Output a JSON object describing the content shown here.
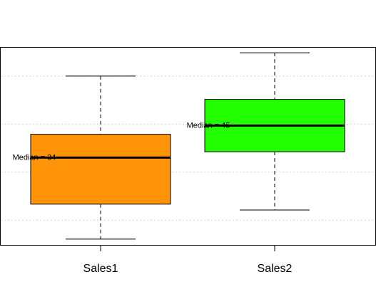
{
  "chart_data": {
    "type": "box",
    "title": "",
    "xlabel": "",
    "ylabel": "",
    "categories": [
      "Sales1",
      "Sales2"
    ],
    "ylim": [
      4,
      72
    ],
    "grid": true,
    "grid_values": [
      12.5,
      29,
      45.5,
      62
    ],
    "boxes": [
      {
        "name": "Sales1",
        "min": 6,
        "q1": 18,
        "median": 34,
        "q3": 42,
        "max": 62,
        "color": "#FF9408",
        "median_label": "Median = 34"
      },
      {
        "name": "Sales2",
        "min": 16,
        "q1": 36,
        "median": 45,
        "q3": 54,
        "max": 70,
        "color": "#22FF00",
        "median_label": "Median = 45"
      }
    ]
  }
}
